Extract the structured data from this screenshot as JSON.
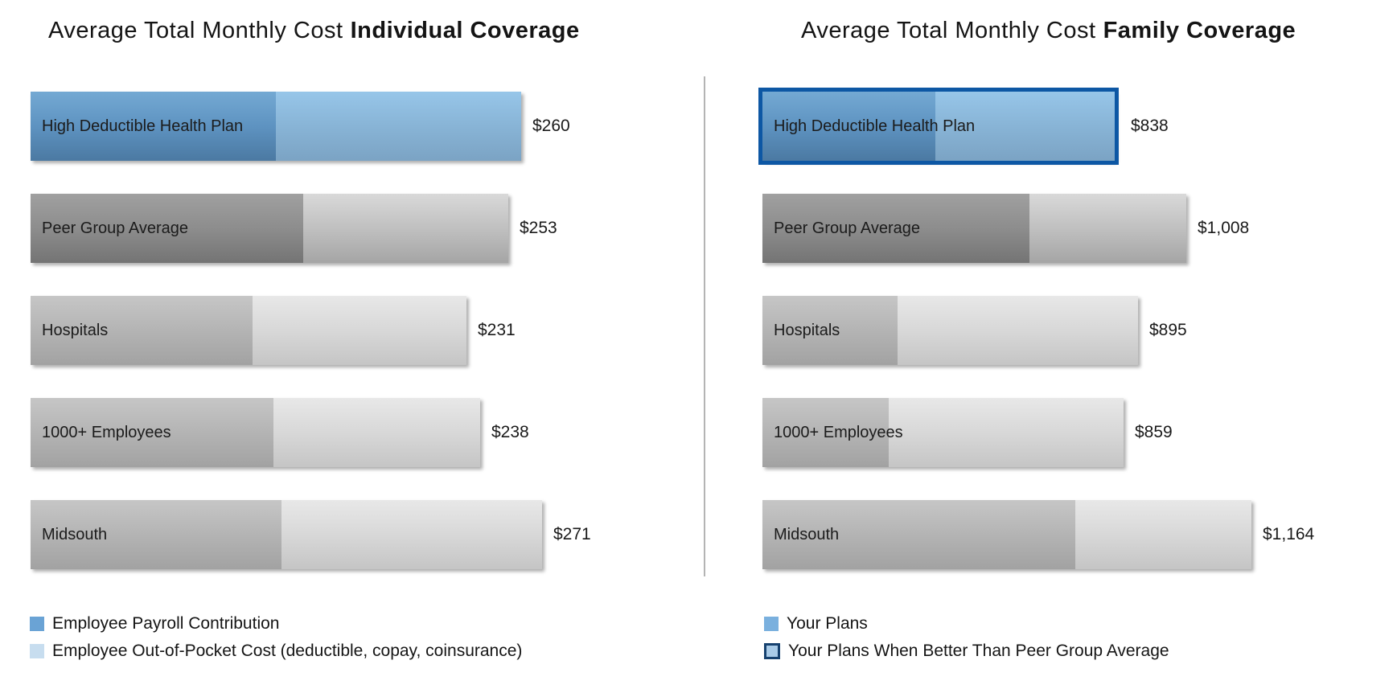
{
  "page": {
    "background": "#ffffff",
    "divider_color": "#b4b4b4"
  },
  "colors": {
    "payroll_blue_dark": "#5e93c1",
    "out_of_pocket_blue_light": "#88b4d6",
    "peer_gray_dark": "#8d8d8d",
    "peer_gray_light": "#c0c0c0",
    "benchmark_gray_dark": "#b4b4b4",
    "benchmark_gray_light": "#d8d8d8",
    "highlight_border_navy": "#0d57a4",
    "legend_payroll": "#6aa3d5",
    "legend_out_of_pocket": "#c7ddef",
    "legend_your_plans": "#7ab0de",
    "legend_your_plans_better_fill": "#a9cbe8",
    "legend_your_plans_better_border": "#16416f",
    "text": "#1a1a1a"
  },
  "chart_data": [
    {
      "type": "bar",
      "orientation": "horizontal",
      "stacked": true,
      "title_regular": "Average Total Monthly Cost",
      "title_bold": "Individual Coverage",
      "categories": [
        "High Deductible Health Plan",
        "Peer Group Average",
        "Hospitals",
        "1000+ Employees",
        "Midsouth"
      ],
      "totals": [
        260,
        253,
        231,
        238,
        271
      ],
      "value_labels": [
        "$260",
        "$253",
        "$231",
        "$238",
        "$271"
      ],
      "seg1_fraction": [
        0.5,
        0.57,
        0.51,
        0.54,
        0.49
      ],
      "bar_styles": [
        "blue",
        "gray-dark",
        "gray",
        "gray",
        "gray"
      ],
      "highlighted": [
        false,
        false,
        false,
        false,
        false
      ],
      "xlim": [
        0,
        280
      ],
      "grid": false,
      "legend_position": "bottom-left",
      "legend": [
        {
          "label": "Employee Payroll Contribution",
          "swatch": "payroll"
        },
        {
          "label": "Employee Out-of-Pocket Cost (deductible, copay, coinsurance)",
          "swatch": "oop"
        }
      ]
    },
    {
      "type": "bar",
      "orientation": "horizontal",
      "stacked": true,
      "title_regular": "Average Total Monthly Cost",
      "title_bold": "Family Coverage",
      "categories": [
        "High Deductible Health Plan",
        "Peer Group Average",
        "Hospitals",
        "1000+ Employees",
        "Midsouth"
      ],
      "totals": [
        838,
        1008,
        895,
        859,
        1164
      ],
      "value_labels": [
        "$838",
        "$1,008",
        "$895",
        "$859",
        "$1,164"
      ],
      "seg1_fraction": [
        0.49,
        0.63,
        0.36,
        0.35,
        0.64
      ],
      "bar_styles": [
        "blue",
        "gray-dark",
        "gray",
        "gray",
        "gray"
      ],
      "highlighted": [
        true,
        false,
        false,
        false,
        false
      ],
      "xlim": [
        0,
        1200
      ],
      "grid": false,
      "legend_position": "bottom-left",
      "legend": [
        {
          "label": "Your Plans",
          "swatch": "your-plans"
        },
        {
          "label": "Your Plans When Better Than Peer Group Average",
          "swatch": "your-plans-better"
        }
      ]
    }
  ]
}
